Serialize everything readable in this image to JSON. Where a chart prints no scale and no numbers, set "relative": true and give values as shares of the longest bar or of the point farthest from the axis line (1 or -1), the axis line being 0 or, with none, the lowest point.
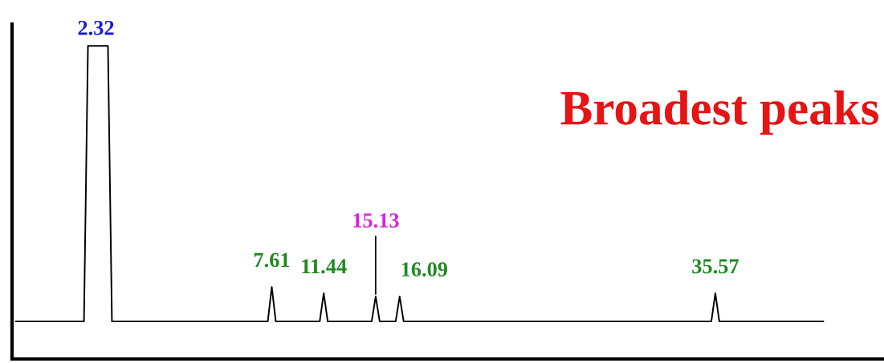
{
  "chart_data": {
    "type": "line",
    "relative": true,
    "title": "Broadest peaks",
    "annotations": [
      "2.32",
      "7.61",
      "11.44",
      "15.13",
      "16.09",
      "35.57"
    ],
    "legend": false,
    "marker": "none",
    "line_style": "solid",
    "categories": [
      null,
      null,
      null,
      null,
      null,
      null,
      null,
      null,
      null,
      null,
      null,
      null,
      null,
      null,
      null,
      null,
      null,
      null,
      null,
      null,
      null,
      null,
      null,
      null,
      null,
      null,
      null,
      null,
      null,
      null,
      null,
      null,
      null,
      null,
      null,
      null,
      null,
      null,
      null,
      null,
      null,
      null,
      null,
      null,
      null,
      null,
      null,
      null,
      null,
      null,
      null,
      null,
      null,
      null,
      null,
      null,
      null,
      null,
      null,
      null,
      null,
      null,
      null,
      null,
      null,
      null,
      null,
      null,
      null,
      null,
      null,
      null,
      null,
      null,
      null,
      null,
      null,
      null,
      null,
      null,
      null,
      null,
      null,
      null,
      null,
      null,
      null,
      null,
      null,
      null,
      null,
      null,
      null,
      null,
      null,
      null,
      null,
      null,
      null,
      null,
      null,
      null,
      null,
      null,
      null,
      null,
      null,
      null,
      null,
      null,
      null,
      null,
      null,
      null,
      null,
      null,
      null,
      null,
      null,
      null,
      null,
      null,
      null,
      null,
      null,
      null,
      null,
      null,
      null,
      null,
      null,
      null,
      null,
      null,
      null,
      null,
      null,
      null,
      null,
      null,
      null,
      null,
      null,
      null,
      null,
      null,
      null,
      null,
      null,
      null,
      null,
      null,
      null,
      null,
      null,
      null,
      null,
      null,
      null,
      null,
      null,
      null,
      null,
      null,
      null,
      null,
      null,
      null,
      null,
      null,
      null,
      null,
      null,
      null,
      null,
      null,
      null,
      null,
      null,
      null,
      null,
      null,
      null,
      null,
      null,
      null,
      null,
      null,
      null,
      null,
      null,
      null,
      null,
      null,
      null,
      null,
      null,
      null,
      null,
      null,
      null,
      null,
      null
    ],
    "series": [
      {
        "color": "#000000",
        "values": [
          0.12,
          0.12,
          0.12,
          0.12,
          0.12,
          0.12,
          0.12,
          0.12,
          0.12,
          0.12,
          0.12,
          0.12,
          0.12,
          0.12,
          0.12,
          0.12,
          0.12,
          0.12,
          1,
          1,
          1,
          1,
          1,
          1,
          0.12,
          0.12,
          0.12,
          0.12,
          0.12,
          0.12,
          0.12,
          0.12,
          0.12,
          0.12,
          0.12,
          0.12,
          0.12,
          0.12,
          0.12,
          0.12,
          0.12,
          0.12,
          0.12,
          0.12,
          0.12,
          0.12,
          0.12,
          0.12,
          0.12,
          0.12,
          0.12,
          0.12,
          0.12,
          0.12,
          0.12,
          0.12,
          0.12,
          0.12,
          0.12,
          0.12,
          0.12,
          0.12,
          0.12,
          0.12,
          0.23,
          0.12,
          0.12,
          0.12,
          0.12,
          0.12,
          0.12,
          0.12,
          0.12,
          0.12,
          0.12,
          0.12,
          0.12,
          0.21,
          0.12,
          0.12,
          0.12,
          0.12,
          0.12,
          0.12,
          0.12,
          0.12,
          0.12,
          0.12,
          0.12,
          0.12,
          0.2,
          0.12,
          0.12,
          0.12,
          0.12,
          0.12,
          0.2,
          0.12,
          0.12,
          0.12,
          0.12,
          0.12,
          0.12,
          0.12,
          0.12,
          0.12,
          0.12,
          0.12,
          0.12,
          0.12,
          0.12,
          0.12,
          0.12,
          0.12,
          0.12,
          0.12,
          0.12,
          0.12,
          0.12,
          0.12,
          0.12,
          0.12,
          0.12,
          0.12,
          0.12,
          0.12,
          0.12,
          0.12,
          0.12,
          0.12,
          0.12,
          0.12,
          0.12,
          0.12,
          0.12,
          0.12,
          0.12,
          0.12,
          0.12,
          0.12,
          0.12,
          0.12,
          0.12,
          0.12,
          0.12,
          0.12,
          0.12,
          0.12,
          0.12,
          0.12,
          0.12,
          0.12,
          0.12,
          0.12,
          0.12,
          0.12,
          0.12,
          0.12,
          0.12,
          0.12,
          0.12,
          0.12,
          0.12,
          0.12,
          0.12,
          0.12,
          0.12,
          0.12,
          0.12,
          0.12,
          0.12,
          0.12,
          0.12,
          0.12,
          0.12,
          0.21,
          0.12,
          0.12,
          0.12,
          0.12,
          0.12,
          0.12,
          0.12,
          0.12,
          0.12,
          0.12,
          0.12,
          0.12,
          0.12,
          0.12,
          0.12,
          0.12,
          0.12,
          0.12,
          0.12,
          0.12,
          0.12,
          0.12,
          0.12,
          0.12,
          0.12,
          0.12,
          0.12
        ],
        "colors": [
          null,
          null,
          null,
          null,
          null,
          null,
          null,
          null,
          null,
          null,
          null,
          null,
          null,
          null,
          null,
          null,
          null,
          null,
          null,
          null,
          "#1a1ad9",
          null,
          null,
          null,
          null,
          null,
          null,
          null,
          null,
          null,
          null,
          null,
          null,
          null,
          null,
          null,
          null,
          null,
          null,
          null,
          null,
          null,
          null,
          null,
          null,
          null,
          null,
          null,
          null,
          null,
          null,
          null,
          null,
          null,
          null,
          null,
          null,
          null,
          null,
          null,
          null,
          null,
          null,
          null,
          "#1e8a1e",
          null,
          null,
          null,
          null,
          null,
          null,
          null,
          null,
          null,
          null,
          null,
          null,
          "#1e8a1e",
          null,
          null,
          null,
          null,
          null,
          null,
          null,
          null,
          null,
          null,
          null,
          null,
          "#e01ee0",
          null,
          null,
          null,
          null,
          null,
          "#1e8a1e",
          null,
          null,
          null,
          null,
          null,
          null,
          null,
          null,
          null,
          null,
          null,
          null,
          null,
          null,
          null,
          null,
          null,
          null,
          null,
          null,
          null,
          null,
          null,
          null,
          null,
          null,
          null,
          null,
          null,
          null,
          null,
          null,
          null,
          null,
          null,
          null,
          null,
          null,
          null,
          null,
          null,
          null,
          null,
          null,
          null,
          null,
          null,
          null,
          null,
          null,
          null,
          null,
          null,
          null,
          null,
          null,
          null,
          null,
          null,
          null,
          null,
          null,
          null,
          null,
          null,
          null,
          null,
          null,
          null,
          null,
          null,
          null,
          null,
          null,
          null,
          null,
          null,
          null,
          "#1e8a1e",
          null,
          null,
          null,
          null,
          null,
          null,
          null,
          null,
          null,
          null,
          null,
          null,
          null,
          null,
          null,
          null,
          null,
          null,
          null,
          null,
          null,
          null,
          null,
          null,
          null,
          null,
          null
        ]
      }
    ]
  }
}
